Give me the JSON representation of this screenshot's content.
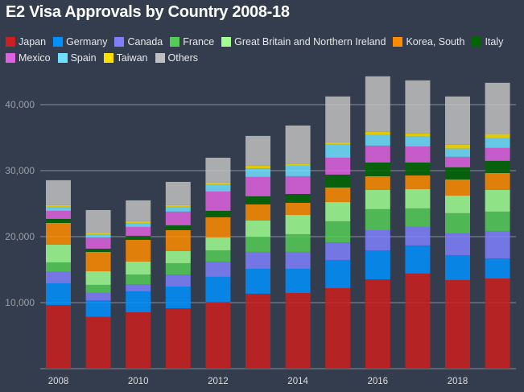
{
  "chart_data": {
    "type": "bar",
    "stacked": true,
    "title": "E2 Visa Approvals by Country 2008-18",
    "x": [
      "2008",
      "2009",
      "2010",
      "2011",
      "2012",
      "2013",
      "2014",
      "2015",
      "2016",
      "2017",
      "2018",
      "2019"
    ],
    "x_tick_labels": [
      "2008",
      "2010",
      "2012",
      "2014",
      "2016",
      "2018"
    ],
    "y_tick_labels": [
      "10,000",
      "20,000",
      "30,000",
      "40,000"
    ],
    "ylim": [
      0,
      55800
    ],
    "grid": true,
    "legend_position": "top",
    "series": [
      {
        "name": "Japan",
        "color": "#cc1f1f",
        "values": [
          9640,
          7840,
          8540,
          9150,
          10090,
          11350,
          11470,
          12200,
          13540,
          14400,
          13420,
          13660
        ]
      },
      {
        "name": "Germany",
        "color": "#0090ff",
        "values": [
          3290,
          2530,
          3170,
          3290,
          3820,
          3780,
          3660,
          4270,
          4390,
          4270,
          3780,
          3050
        ]
      },
      {
        "name": "Canada",
        "color": "#8080ff",
        "values": [
          1750,
          1100,
          1060,
          1800,
          2320,
          2560,
          2560,
          2650,
          3050,
          2800,
          3300,
          4150
        ]
      },
      {
        "name": "France",
        "color": "#55cc55",
        "values": [
          1420,
          1220,
          1500,
          1740,
          1700,
          2320,
          2680,
          3210,
          3180,
          2810,
          3050,
          2930
        ]
      },
      {
        "name": "Great Britain and Northern Ireland",
        "color": "#a0ff90",
        "values": [
          2690,
          2070,
          1960,
          1830,
          1960,
          2440,
          2930,
          2920,
          2920,
          2930,
          2680,
          3290
        ]
      },
      {
        "name": "Korea, South",
        "color": "#ff8c00",
        "values": [
          3290,
          2930,
          3290,
          3170,
          3050,
          2440,
          1830,
          2200,
          2080,
          2070,
          2440,
          2570
        ]
      },
      {
        "name": "Italy",
        "color": "#006600",
        "values": [
          610,
          490,
          610,
          740,
          970,
          1220,
          1340,
          1950,
          2070,
          1950,
          1830,
          1830
        ]
      },
      {
        "name": "Mexico",
        "color": "#e060e0",
        "values": [
          1220,
          1710,
          1340,
          2070,
          2930,
          2930,
          2690,
          2560,
          2560,
          2440,
          1590,
          1950
        ]
      },
      {
        "name": "Spain",
        "color": "#70e0ff",
        "values": [
          610,
          480,
          530,
          730,
          1010,
          1300,
          1580,
          1960,
          1590,
          1470,
          1250,
          1460
        ]
      },
      {
        "name": "Taiwan",
        "color": "#ffe000",
        "values": [
          250,
          250,
          330,
          250,
          330,
          400,
          280,
          360,
          490,
          480,
          580,
          650
        ]
      },
      {
        "name": "Others",
        "color": "#c0c0c0",
        "values": [
          3780,
          3410,
          3170,
          3530,
          3780,
          4520,
          5820,
          6960,
          8420,
          8060,
          7320,
          7770
        ]
      }
    ]
  },
  "colors": {
    "background": "#333d4d",
    "grid": "#8a8f98",
    "tick_text": "#9aa0a8",
    "axis_label_text": "#dddddd"
  }
}
